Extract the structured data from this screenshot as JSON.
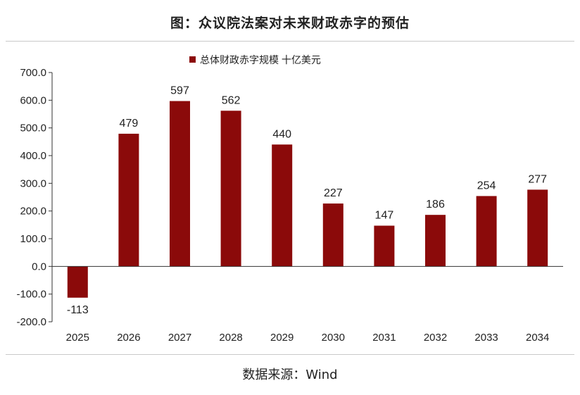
{
  "header": {
    "title": "图：众议院法案对未来财政赤字的预估"
  },
  "footer": {
    "source": "数据来源：Wind"
  },
  "colors": {
    "bar": "#8b0a0a",
    "axis": "#333333",
    "text": "#222222"
  },
  "chart_data": {
    "type": "bar",
    "categories": [
      "2025",
      "2026",
      "2027",
      "2028",
      "2029",
      "2030",
      "2031",
      "2032",
      "2033",
      "2034"
    ],
    "series": [
      {
        "name": "总体财政赤字规模 十亿美元",
        "values": [
          -113,
          479,
          597,
          562,
          440,
          227,
          147,
          186,
          254,
          277
        ]
      }
    ],
    "data_labels": [
      "-113",
      "479",
      "597",
      "562",
      "440",
      "227",
      "147",
      "186",
      "254",
      "277"
    ],
    "y_ticks": [
      "700.0",
      "600.0",
      "500.0",
      "400.0",
      "300.0",
      "200.0",
      "100.0",
      "0.0",
      "-100.0",
      "-200.0"
    ],
    "ylim": [
      -200,
      700
    ],
    "grid": false,
    "legend": "top-left",
    "title": "",
    "xlabel": "",
    "ylabel": ""
  }
}
